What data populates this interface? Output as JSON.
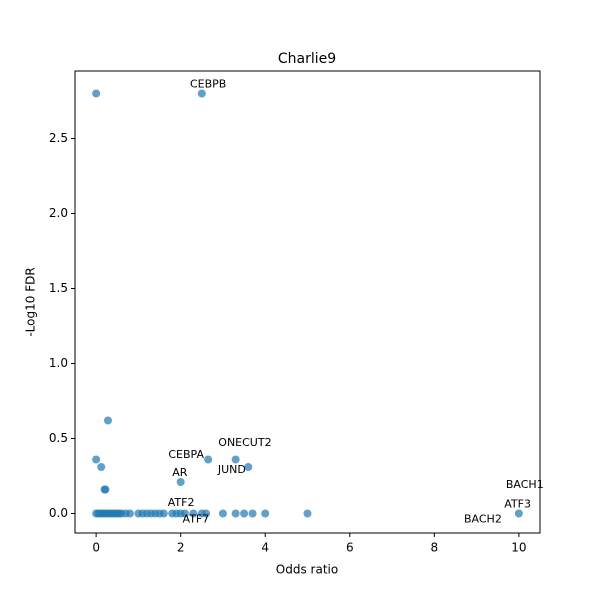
{
  "chart_data": {
    "type": "scatter",
    "title": "Charlie9",
    "x_label": "Odds ratio",
    "y_label": "-Log10 FDR",
    "color": "#1f77b4",
    "x": [
      0,
      2.5,
      0.28,
      0,
      0.12,
      0.2,
      0.22,
      2.0,
      2.65,
      3.3,
      3.6,
      0,
      0.05,
      0.1,
      0.15,
      0.2,
      0.25,
      0.3,
      0.35,
      0.4,
      0.45,
      0.5,
      0.55,
      0.6,
      0.7,
      0.8,
      1.0,
      1.1,
      1.2,
      1.3,
      1.4,
      1.5,
      1.6,
      1.8,
      1.9,
      2.0,
      2.1,
      2.3,
      2.5,
      2.6,
      3.0,
      3.3,
      3.5,
      3.7,
      4.0,
      5.0,
      10.0
    ],
    "values": [
      2.8,
      2.8,
      0.62,
      0.36,
      0.31,
      0.16,
      0.16,
      0.21,
      0.36,
      0.36,
      0.31,
      0,
      0,
      0,
      0,
      0,
      0,
      0,
      0,
      0,
      0,
      0,
      0,
      0,
      0,
      0,
      0,
      0,
      0,
      0,
      0,
      0,
      0,
      0,
      0,
      0,
      0,
      0,
      0,
      0,
      0,
      0,
      0,
      0,
      0,
      0,
      0
    ],
    "xlim": [
      -0.5,
      10.5
    ],
    "ylim": [
      -0.13,
      2.95
    ],
    "xticks": [
      0,
      2,
      4,
      6,
      8,
      10
    ],
    "yticks": [
      {
        "value": 0,
        "label": "0.0"
      },
      0.5,
      {
        "value": 1,
        "label": "1.0"
      },
      1.5,
      {
        "value": 2,
        "label": "2.0"
      },
      2.5
    ],
    "annotations": [
      {
        "text": "CEBPB",
        "x": 2.65,
        "y": 2.86
      },
      {
        "text": "CEBPA",
        "x": 2.13,
        "y": 0.39
      },
      {
        "text": "ONECUT2",
        "x": 3.52,
        "y": 0.47
      },
      {
        "text": "JUND",
        "x": 3.21,
        "y": 0.29
      },
      {
        "text": "AR",
        "x": 1.98,
        "y": 0.27
      },
      {
        "text": "ATF2",
        "x": 2.01,
        "y": 0.07
      },
      {
        "text": "ATF7",
        "x": 2.36,
        "y": -0.04
      },
      {
        "text": "BACH1",
        "x": 10.14,
        "y": 0.19
      },
      {
        "text": "ATF3",
        "x": 9.97,
        "y": 0.06
      },
      {
        "text": "BACH2",
        "x": 9.15,
        "y": -0.04
      }
    ]
  }
}
